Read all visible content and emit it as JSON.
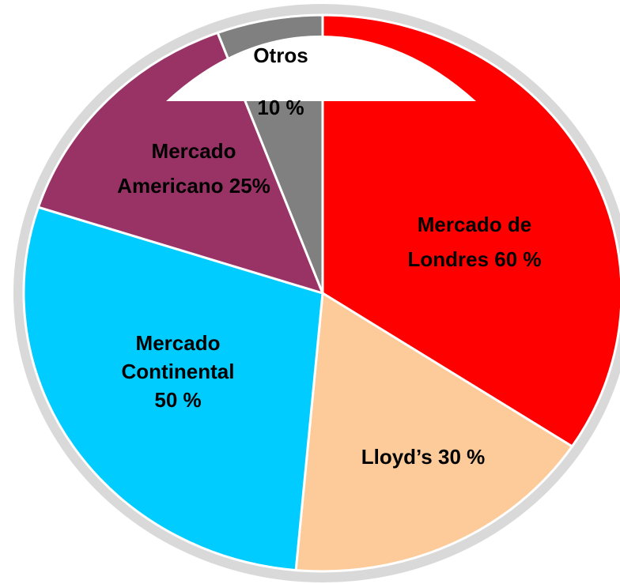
{
  "chart_data": {
    "type": "pie",
    "categories": [
      "Londres",
      "Lloyd’s",
      "Continental",
      "Americano",
      "Otros"
    ],
    "values": [
      60,
      30,
      50,
      25,
      10
    ],
    "value_labels": [
      "Mercado de\nLondres 60 %",
      "Lloyd’s 30 %",
      "Mercado\nContinental\n50 %",
      "Mercado\nAmericano 25%",
      "Otros\n10 %"
    ],
    "colors": [
      "#ff0000",
      "#fdca99",
      "#00ccff",
      "#993366",
      "#808080"
    ]
  }
}
